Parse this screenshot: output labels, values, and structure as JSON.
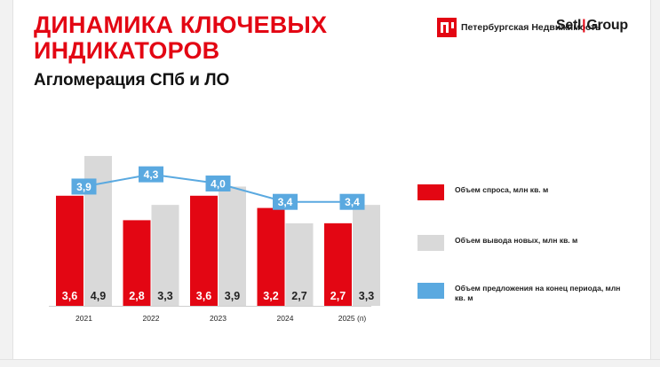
{
  "header": {
    "title": "ДИНАМИКА КЛЮЧЕВЫХ ИНДИКАТОРОВ",
    "subtitle": "Агломерация СПб и ЛО"
  },
  "logos": {
    "petersburg_realty": "Петербургская Недвижимость",
    "setl_part1": "Setl",
    "setl_separator": "|",
    "setl_part2": "Group"
  },
  "colors": {
    "brand_red": "#e30613",
    "demand": "#e30613",
    "new_supply": "#d9d9d9",
    "offer": "#5aa9e0",
    "text_dark": "#111111"
  },
  "chart_data": {
    "type": "bar",
    "categories": [
      "2021",
      "2022",
      "2023",
      "2024",
      "2025 (п)"
    ],
    "series": [
      {
        "name": "Объем спроса, млн кв. м",
        "values": [
          3.6,
          2.8,
          3.6,
          3.2,
          2.7
        ],
        "labels": [
          "3,6",
          "2,8",
          "3,6",
          "3,2",
          "2,7"
        ],
        "color": "#e30613",
        "kind": "bar"
      },
      {
        "name": "Объем вывода новых, млн кв. м",
        "values": [
          4.9,
          3.3,
          3.9,
          2.7,
          3.3
        ],
        "labels": [
          "4,9",
          "3,3",
          "3,9",
          "2,7",
          "3,3"
        ],
        "color": "#d9d9d9",
        "kind": "bar"
      },
      {
        "name": "Объем предложения на конец периода, млн кв. м",
        "values": [
          3.9,
          4.3,
          4.0,
          3.4,
          3.4
        ],
        "labels": [
          "3,9",
          "4,3",
          "4,0",
          "3,4",
          "3,4"
        ],
        "color": "#5aa9e0",
        "kind": "line"
      }
    ],
    "legend_position": "right",
    "grid": false
  }
}
